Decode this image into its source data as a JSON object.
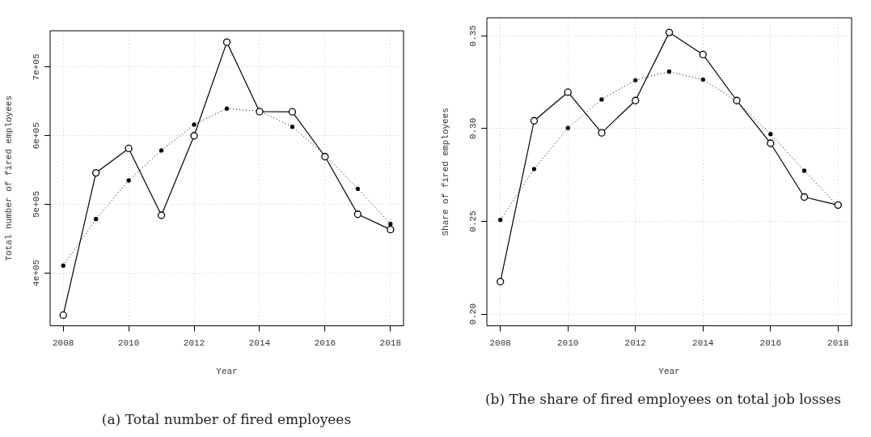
{
  "chart_data": [
    {
      "type": "line",
      "title": "(a) Total number of fired employees",
      "xlabel": "Year",
      "ylabel": "Total number of fired employees",
      "x": [
        2008,
        2009,
        2010,
        2011,
        2012,
        2013,
        2014,
        2015,
        2016,
        2017,
        2018
      ],
      "series": [
        {
          "color": "#000000",
          "marker": "circle",
          "line_style": "solid",
          "values": [
            338500,
            545900,
            581500,
            484100,
            600000,
            736300,
            635200,
            634800,
            569600,
            485600,
            463300
          ]
        },
        {
          "color": "#000000",
          "marker": "circle",
          "line_style": "dotted",
          "values": [
            410700,
            478500,
            534800,
            578500,
            616300,
            639600,
            635900,
            613000,
            571900,
            522600,
            471500
          ]
        }
      ],
      "xlim": [
        2007.6,
        2018.4
      ],
      "xticks": [
        2008,
        2010,
        2012,
        2014,
        2016,
        2018
      ],
      "ylim": [
        323000,
        753000
      ],
      "yticks": [
        {
          "value": 400000,
          "label": "4e+05"
        },
        {
          "value": 500000,
          "label": "5e+05"
        },
        {
          "value": 600000,
          "label": "6e+05"
        },
        {
          "value": 700000,
          "label": "7e+05"
        }
      ],
      "grid": true
    },
    {
      "type": "line",
      "title": "(b) The share of fired employees on total job losses",
      "xlabel": "Year",
      "ylabel": "Share of fired employees",
      "x": [
        2008,
        2009,
        2010,
        2011,
        2012,
        2013,
        2014,
        2015,
        2016,
        2017,
        2018
      ],
      "series": [
        {
          "color": "#000000",
          "marker": "circle",
          "line_style": "solid",
          "values": [
            0.2175,
            0.3042,
            0.3196,
            0.2977,
            0.3151,
            0.3518,
            0.3399,
            0.3151,
            0.2921,
            0.2631,
            0.2588
          ]
        },
        {
          "color": "#000000",
          "marker": "circle",
          "line_style": "dotted",
          "values": [
            0.2508,
            0.2782,
            0.3003,
            0.3157,
            0.3261,
            0.3307,
            0.3264,
            0.3147,
            0.297,
            0.2773,
            0.2582
          ]
        }
      ],
      "xlim": [
        2007.6,
        2018.4
      ],
      "xticks": [
        2008,
        2010,
        2012,
        2014,
        2016,
        2018
      ],
      "ylim": [
        0.1937,
        0.3597
      ],
      "yticks": [
        {
          "value": 0.2,
          "label": "0.20"
        },
        {
          "value": 0.25,
          "label": "0.25"
        },
        {
          "value": 0.3,
          "label": "0.30"
        },
        {
          "value": 0.35,
          "label": "0.35"
        }
      ],
      "grid": true
    }
  ]
}
